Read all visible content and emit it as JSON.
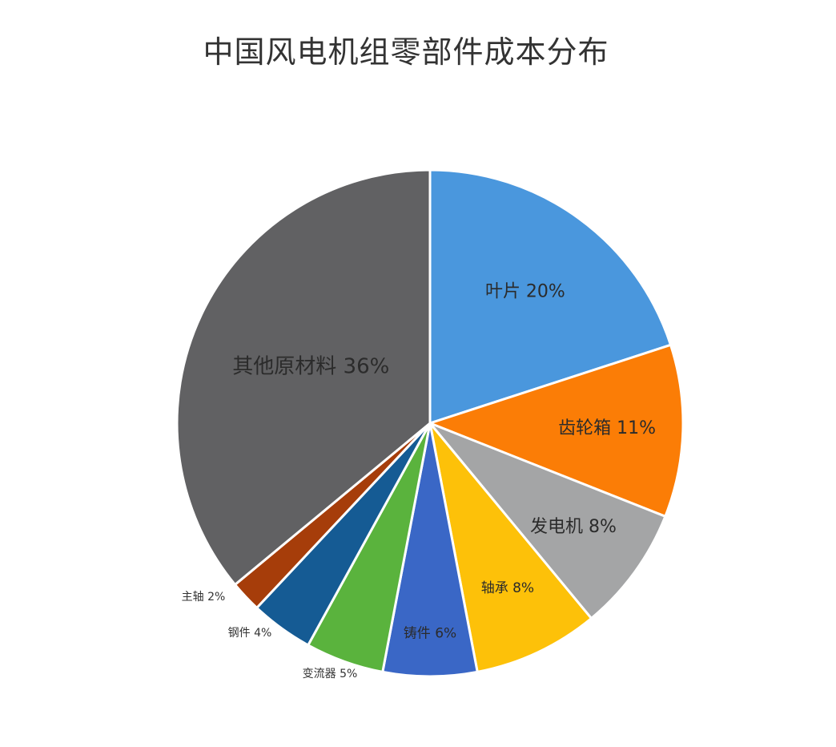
{
  "chart_data": {
    "type": "pie",
    "title": "中国风电机组零部件成本分布",
    "slices": [
      {
        "label": "叶片",
        "value": 20,
        "display": "20%",
        "color": "#4a97dd",
        "label_position": "inside"
      },
      {
        "label": "齿轮箱",
        "value": 11,
        "display": "11%",
        "color": "#fb7d06",
        "label_position": "inside"
      },
      {
        "label": "发电机",
        "value": 8,
        "display": "8%",
        "color": "#a4a5a6",
        "label_position": "inside"
      },
      {
        "label": "轴承",
        "value": 8,
        "display": "8%",
        "color": "#fdc109",
        "label_position": "inside"
      },
      {
        "label": "铸件",
        "value": 6,
        "display": "6%",
        "color": "#3a67c6",
        "label_position": "inside"
      },
      {
        "label": "变流器",
        "value": 5,
        "display": "5%",
        "color": "#5ab33d",
        "label_position": "outside"
      },
      {
        "label": "钢件",
        "value": 4,
        "display": "4%",
        "color": "#155b94",
        "label_position": "outside"
      },
      {
        "label": "主轴",
        "value": 2,
        "display": "2%",
        "color": "#a63d0a",
        "label_position": "outside"
      },
      {
        "label": "其他原材料",
        "value": 36,
        "display": "36%",
        "color": "#616163",
        "label_position": "inside"
      }
    ],
    "start_angle_deg": 0,
    "direction": "clockwise",
    "legend": "none"
  }
}
